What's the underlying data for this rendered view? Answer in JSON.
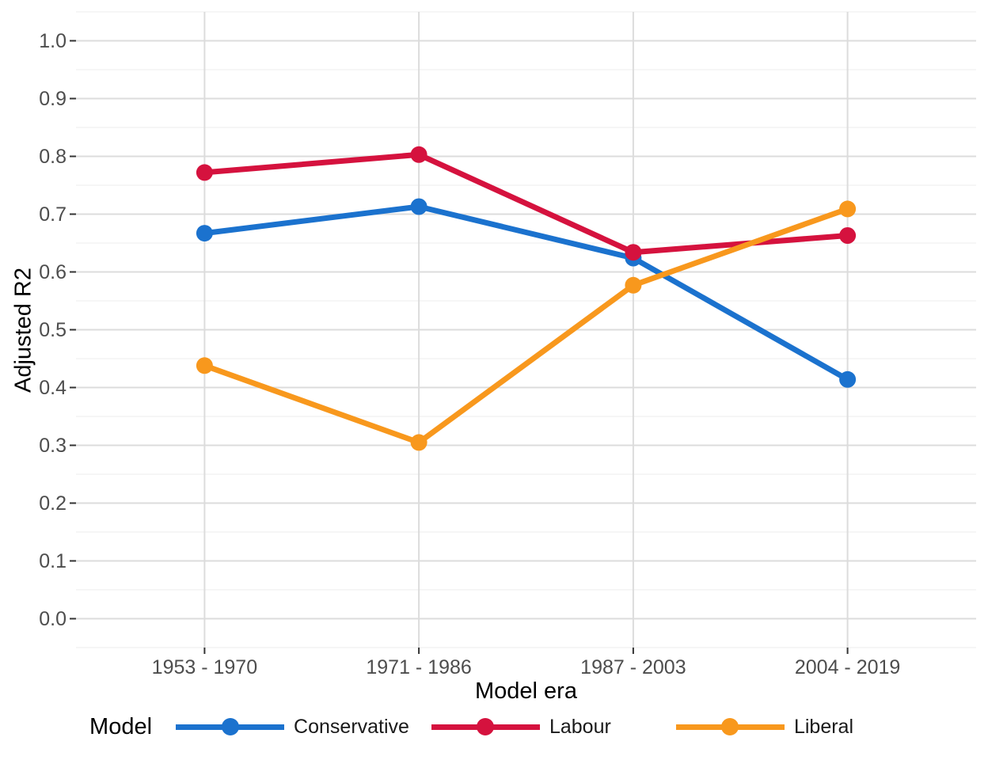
{
  "chart_data": {
    "type": "line",
    "title": "",
    "xlabel": "Model era",
    "ylabel": "Adjusted R2",
    "categories": [
      "1953 - 1970",
      "1971 - 1986",
      "1987 - 2003",
      "2004 - 2019"
    ],
    "series": [
      {
        "name": "Conservative",
        "color": "#1B72CE",
        "values": [
          0.667,
          0.713,
          0.624,
          0.414
        ]
      },
      {
        "name": "Labour",
        "color": "#D5123E",
        "values": [
          0.772,
          0.803,
          0.634,
          0.663
        ]
      },
      {
        "name": "Liberal",
        "color": "#F8981D",
        "values": [
          0.438,
          0.305,
          0.577,
          0.709
        ]
      }
    ],
    "y_ticks": [
      "0.0",
      "0.1",
      "0.2",
      "0.3",
      "0.4",
      "0.5",
      "0.6",
      "0.7",
      "0.8",
      "0.9",
      "1.0"
    ],
    "ylim": [
      0.0,
      1.0
    ],
    "grid": {
      "major_color": "#DCDCDC",
      "minor_color": "#F0F0F0",
      "minor_step": 0.05,
      "background": "#ffffff"
    },
    "axis": {
      "tick_color": "#333333",
      "tick_label_color": "#4D4D4D",
      "title_color": "#000000"
    },
    "legend": {
      "title": "Model",
      "position": "bottom",
      "entries": [
        "Conservative",
        "Labour",
        "Liberal"
      ]
    }
  }
}
